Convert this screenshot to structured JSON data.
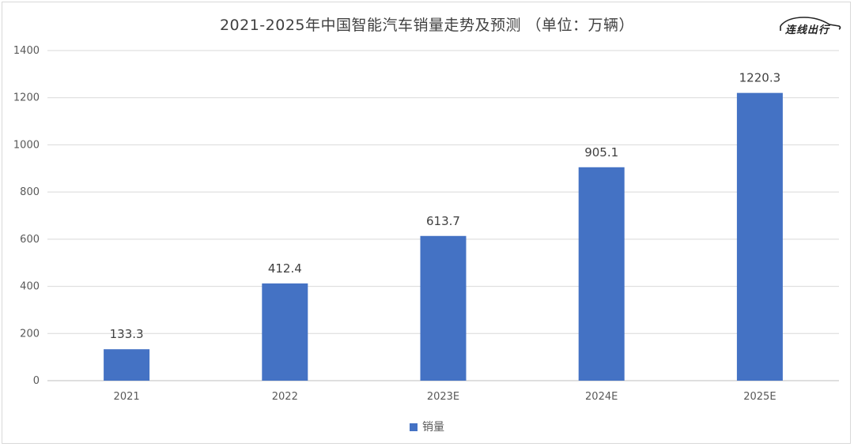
{
  "colors": {
    "bar": "#4472c4",
    "grid": "#d9d9d9",
    "axis_text": "#595959"
  },
  "logo": {
    "icon": "car-outline-icon",
    "text": "连线出行"
  },
  "chart_data": {
    "type": "bar",
    "title": "2021-2025年中国智能汽车销量走势及预测 （单位：万辆）",
    "categories": [
      "2021",
      "2022",
      "2023E",
      "2024E",
      "2025E"
    ],
    "series": [
      {
        "name": "销量",
        "values": [
          133.3,
          412.4,
          613.7,
          905.1,
          1220.3
        ]
      }
    ],
    "data_labels": [
      "133.3",
      "412.4",
      "613.7",
      "905.1",
      "1220.3"
    ],
    "ylim": [
      0,
      1400
    ],
    "yticks": [
      0,
      200,
      400,
      600,
      800,
      1000,
      1200,
      1400
    ],
    "grid": true,
    "legend_position": "bottom",
    "xlabel": "",
    "ylabel": ""
  }
}
